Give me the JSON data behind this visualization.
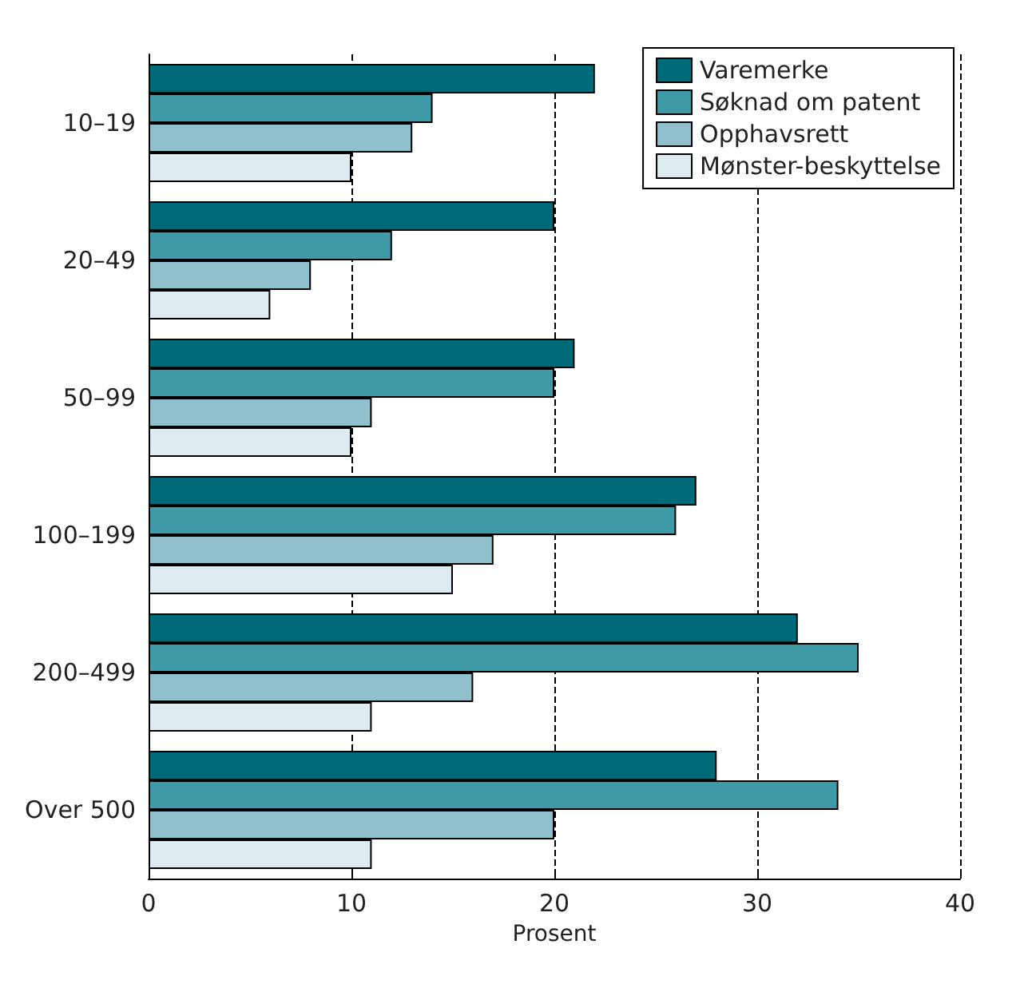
{
  "chart_data": {
    "type": "bar",
    "orientation": "horizontal",
    "xlabel": "Prosent",
    "categories": [
      "10–19",
      "20–49",
      "50–99",
      "100–199",
      "200–499",
      "Over 500"
    ],
    "series": [
      {
        "name": "Varemerke",
        "color": "#006b78",
        "values": [
          22,
          20,
          21,
          27,
          32,
          28
        ]
      },
      {
        "name": "Søknad om patent",
        "color": "#3d9aa6",
        "values": [
          14,
          12,
          20,
          26,
          35,
          34
        ]
      },
      {
        "name": "Opphavsrett",
        "color": "#8fc0cb",
        "values": [
          13,
          8,
          11,
          17,
          16,
          20
        ]
      },
      {
        "name": "Mønster-beskyttelse",
        "color": "#dbebef",
        "values": [
          10,
          6,
          10,
          15,
          11,
          11
        ]
      }
    ],
    "xlim": [
      0,
      40
    ],
    "xticks": [
      0,
      10,
      20,
      30,
      40
    ],
    "grid": "x",
    "legend": "top right"
  }
}
